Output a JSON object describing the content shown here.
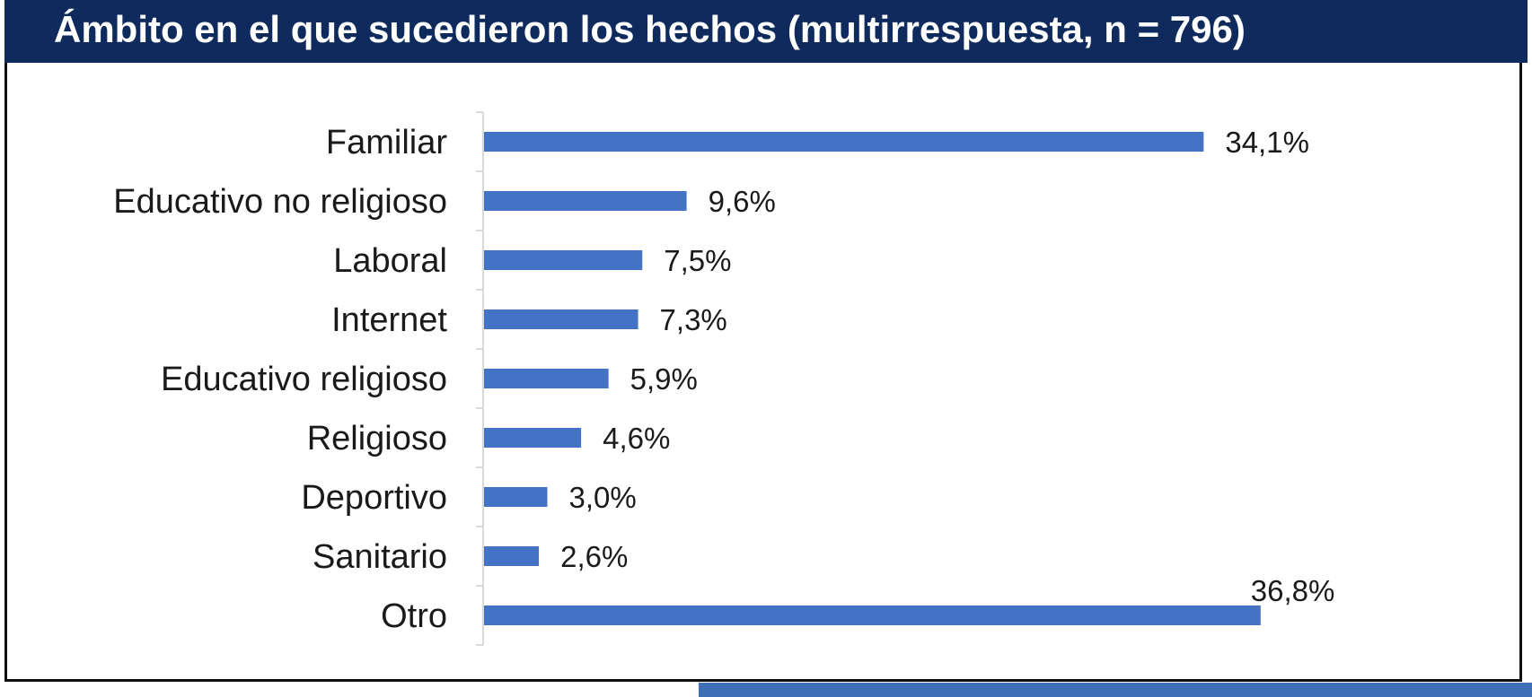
{
  "chart_data": {
    "type": "bar",
    "orientation": "horizontal",
    "title": "Ámbito en el que sucedieron los hechos (multirrespuesta, n = 796)",
    "categories": [
      "Familiar",
      "Educativo no religioso",
      "Laboral",
      "Internet",
      "Educativo religioso",
      "Religioso",
      "Deportivo",
      "Sanitario",
      "Otro"
    ],
    "values": [
      34.1,
      9.6,
      7.5,
      7.3,
      5.9,
      4.6,
      3.0,
      2.6,
      36.8
    ],
    "value_labels": [
      "34,1%",
      "9,6%",
      "7,5%",
      "7,3%",
      "5,9%",
      "4,6%",
      "3,0%",
      "2,6%",
      "36,8%"
    ],
    "xlim": [
      0,
      40
    ],
    "grid": false,
    "legend": "none",
    "bar_color": "#4472c4",
    "title_bg_color": "#0f2a5c"
  }
}
